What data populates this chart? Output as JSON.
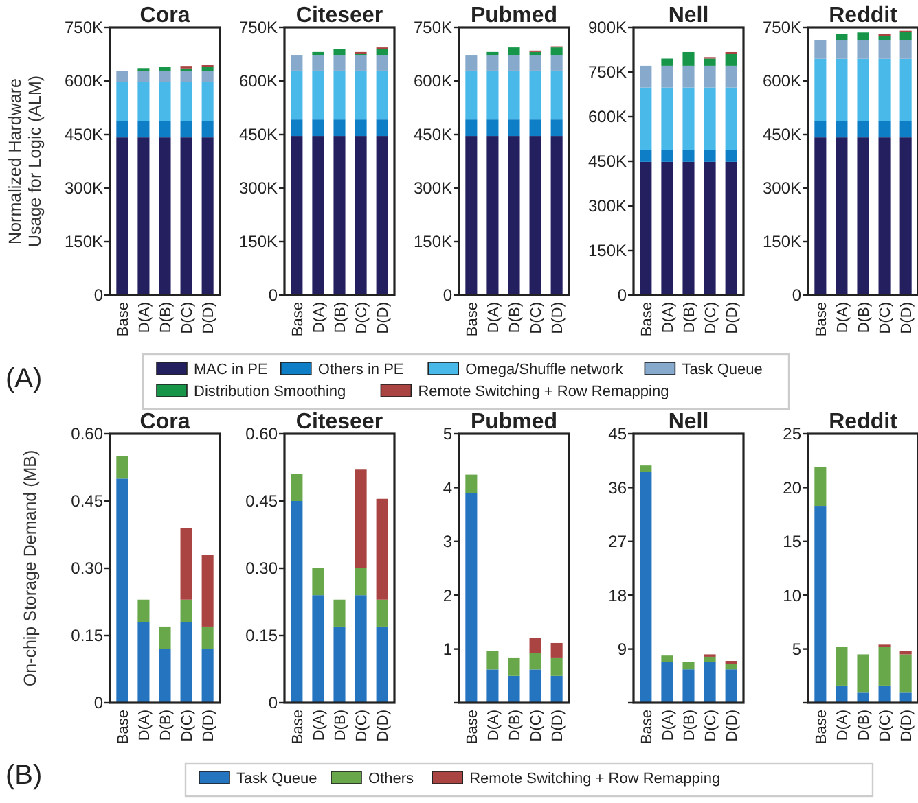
{
  "chart_data": [
    {
      "type": "bar",
      "stacked": true,
      "title": "Cora",
      "ylabel": "Normalized Hardware\nUsage for Logic (ALM)",
      "annotations": [
        "(A)"
      ],
      "legend": "bottom",
      "categories": [
        "Base",
        "D(A)",
        "D(B)",
        "D(C)",
        "D(D)"
      ],
      "ylim": [
        0,
        750
      ],
      "yticks": [
        0,
        {
          "value": 150,
          "label": "150K"
        },
        {
          "value": 300,
          "label": "300K"
        },
        {
          "value": 450,
          "label": "450K"
        },
        {
          "value": 600,
          "label": "600K"
        },
        {
          "value": 750,
          "label": "750K"
        }
      ],
      "series": [
        {
          "name": "MAC in PE",
          "color": "#241f5e",
          "values": [
            442,
            442,
            442,
            442,
            442
          ]
        },
        {
          "name": "Others in PE",
          "color": "#0e7fc7",
          "values": [
            46,
            46,
            46,
            46,
            46
          ]
        },
        {
          "name": "Omega/Shuffle network",
          "color": "#48b9e8",
          "values": [
            109,
            109,
            109,
            109,
            109
          ]
        },
        {
          "name": "Task Queue",
          "color": "#86a9cc",
          "values": [
            30,
            30,
            30,
            30,
            30
          ]
        },
        {
          "name": "Distribution Smoothing",
          "color": "#17964a",
          "values": [
            null,
            9,
            13,
            8,
            13
          ]
        },
        {
          "name": "Remote Switching + Row Remapping",
          "color": "#a94442",
          "values": [
            null,
            null,
            null,
            7,
            6
          ]
        }
      ]
    },
    {
      "type": "bar",
      "stacked": true,
      "title": "Citeseer",
      "categories": [
        "Base",
        "D(A)",
        "D(B)",
        "D(C)",
        "D(D)"
      ],
      "ylim": [
        0,
        750
      ],
      "yticks": [
        0,
        {
          "value": 150,
          "label": "150K"
        },
        {
          "value": 300,
          "label": "300K"
        },
        {
          "value": 450,
          "label": "450K"
        },
        {
          "value": 600,
          "label": "600K"
        },
        {
          "value": 750,
          "label": "750K"
        }
      ],
      "series": [
        {
          "color": "#241f5e",
          "values": [
            446,
            446,
            446,
            446,
            446
          ]
        },
        {
          "color": "#0e7fc7",
          "values": [
            46,
            46,
            46,
            46,
            46
          ]
        },
        {
          "color": "#48b9e8",
          "values": [
            137,
            137,
            137,
            137,
            137
          ]
        },
        {
          "color": "#86a9cc",
          "values": [
            44,
            44,
            44,
            44,
            44
          ]
        },
        {
          "color": "#17964a",
          "values": [
            null,
            8,
            17,
            3,
            17
          ]
        },
        {
          "color": "#a94442",
          "values": [
            null,
            null,
            null,
            5,
            4
          ]
        }
      ]
    },
    {
      "type": "bar",
      "stacked": true,
      "title": "Pubmed",
      "categories": [
        "Base",
        "D(A)",
        "D(B)",
        "D(C)",
        "D(D)"
      ],
      "ylim": [
        0,
        750
      ],
      "yticks": [
        0,
        {
          "value": 150,
          "label": "150K"
        },
        {
          "value": 300,
          "label": "300K"
        },
        {
          "value": 450,
          "label": "450K"
        },
        {
          "value": 600,
          "label": "600K"
        },
        {
          "value": 750,
          "label": "750K"
        }
      ],
      "series": [
        {
          "color": "#241f5e",
          "values": [
            446,
            446,
            446,
            446,
            446
          ]
        },
        {
          "color": "#0e7fc7",
          "values": [
            46,
            46,
            46,
            46,
            46
          ]
        },
        {
          "color": "#48b9e8",
          "values": [
            137,
            137,
            137,
            137,
            137
          ]
        },
        {
          "color": "#86a9cc",
          "values": [
            44,
            44,
            44,
            44,
            44
          ]
        },
        {
          "color": "#17964a",
          "values": [
            null,
            8,
            21,
            8,
            21
          ]
        },
        {
          "color": "#a94442",
          "values": [
            null,
            null,
            null,
            4,
            3
          ]
        }
      ]
    },
    {
      "type": "bar",
      "stacked": true,
      "title": "Nell",
      "categories": [
        "Base",
        "D(A)",
        "D(B)",
        "D(C)",
        "D(D)"
      ],
      "ylim": [
        0,
        900
      ],
      "yticks": [
        0,
        {
          "value": 150,
          "label": "150K"
        },
        {
          "value": 300,
          "label": "300K"
        },
        {
          "value": 450,
          "label": "450K"
        },
        {
          "value": 600,
          "label": "600K"
        },
        {
          "value": 750,
          "label": "750K"
        },
        {
          "value": 900,
          "label": "900K"
        }
      ],
      "series": [
        {
          "color": "#241f5e",
          "values": [
            448,
            448,
            448,
            448,
            448
          ]
        },
        {
          "color": "#0e7fc7",
          "values": [
            41,
            41,
            41,
            41,
            41
          ]
        },
        {
          "color": "#48b9e8",
          "values": [
            209,
            209,
            209,
            209,
            209
          ]
        },
        {
          "color": "#86a9cc",
          "values": [
            73,
            73,
            73,
            73,
            73
          ]
        },
        {
          "color": "#17964a",
          "values": [
            null,
            24,
            46,
            24,
            41
          ]
        },
        {
          "color": "#a94442",
          "values": [
            null,
            null,
            null,
            5,
            5
          ]
        }
      ]
    },
    {
      "type": "bar",
      "stacked": true,
      "title": "Reddit",
      "categories": [
        "Base",
        "D(A)",
        "D(B)",
        "D(C)",
        "D(D)"
      ],
      "ylim": [
        0,
        750
      ],
      "yticks": [
        0,
        {
          "value": 150,
          "label": "150K"
        },
        {
          "value": 300,
          "label": "300K"
        },
        {
          "value": 450,
          "label": "450K"
        },
        {
          "value": 600,
          "label": "600K"
        },
        {
          "value": 750,
          "label": "750K"
        }
      ],
      "series": [
        {
          "color": "#241f5e",
          "values": [
            442,
            442,
            442,
            442,
            442
          ]
        },
        {
          "color": "#0e7fc7",
          "values": [
            46,
            46,
            46,
            46,
            46
          ]
        },
        {
          "color": "#48b9e8",
          "values": [
            174,
            174,
            174,
            174,
            174
          ]
        },
        {
          "color": "#86a9cc",
          "values": [
            53,
            53,
            53,
            53,
            53
          ]
        },
        {
          "color": "#17964a",
          "values": [
            null,
            17,
            21,
            11,
            23
          ]
        },
        {
          "color": "#a94442",
          "values": [
            null,
            null,
            null,
            5,
            3
          ]
        }
      ]
    },
    {
      "type": "bar",
      "stacked": true,
      "title": "Cora",
      "ylabel": "On-chip Storage Demand (MB)",
      "annotations": [
        "(B)"
      ],
      "legend": "bottom",
      "categories": [
        "Base",
        "D(A)",
        "D(B)",
        "D(C)",
        "D(D)"
      ],
      "ylim": [
        0,
        0.6
      ],
      "yticks": [
        0,
        0.15,
        {
          "value": 0.3,
          "label": "0.30"
        },
        0.45,
        {
          "value": 0.6,
          "label": "0.60"
        }
      ],
      "series": [
        {
          "name": "Task Queue",
          "color": "#2574c0",
          "values": [
            0.5,
            0.18,
            0.12,
            0.18,
            0.12
          ]
        },
        {
          "name": "Others",
          "color": "#68a84a",
          "values": [
            0.05,
            0.05,
            0.05,
            0.05,
            0.05
          ]
        },
        {
          "name": "Remote Switching + Row Remapping",
          "color": "#a94442",
          "values": [
            null,
            null,
            null,
            0.16,
            0.16
          ]
        }
      ]
    },
    {
      "type": "bar",
      "stacked": true,
      "title": "Citeseer",
      "categories": [
        "Base",
        "D(A)",
        "D(B)",
        "D(C)",
        "D(D)"
      ],
      "ylim": [
        0,
        0.6
      ],
      "yticks": [
        0,
        0.15,
        {
          "value": 0.3,
          "label": "0.30"
        },
        0.45,
        {
          "value": 0.6,
          "label": "0.60"
        }
      ],
      "series": [
        {
          "color": "#2574c0",
          "values": [
            0.45,
            0.24,
            0.17,
            0.24,
            0.17
          ]
        },
        {
          "color": "#68a84a",
          "values": [
            0.06,
            0.06,
            0.06,
            0.06,
            0.06
          ]
        },
        {
          "color": "#a94442",
          "values": [
            null,
            null,
            null,
            0.22,
            0.225
          ]
        }
      ]
    },
    {
      "type": "bar",
      "stacked": true,
      "title": "Pubmed",
      "categories": [
        "Base",
        "D(A)",
        "D(B)",
        "D(C)",
        "D(D)"
      ],
      "ylim": [
        0,
        5
      ],
      "yticks": [
        {
          "value": 0,
          "label": null
        },
        1,
        2,
        3,
        4,
        5
      ],
      "series": [
        {
          "color": "#2574c0",
          "values": [
            3.9,
            0.62,
            0.5,
            0.62,
            0.5
          ]
        },
        {
          "color": "#68a84a",
          "values": [
            0.34,
            0.34,
            0.33,
            0.3,
            0.33
          ]
        },
        {
          "color": "#a94442",
          "values": [
            null,
            null,
            null,
            0.29,
            0.28
          ]
        }
      ]
    },
    {
      "type": "bar",
      "stacked": true,
      "title": "Nell",
      "categories": [
        "Base",
        "D(A)",
        "D(B)",
        "D(C)",
        "D(D)"
      ],
      "ylim": [
        0,
        45
      ],
      "yticks": [
        {
          "value": 0,
          "label": null
        },
        9,
        18,
        27,
        36,
        45
      ],
      "series": [
        {
          "color": "#2574c0",
          "values": [
            38.6,
            6.8,
            5.6,
            6.8,
            5.6
          ]
        },
        {
          "color": "#68a84a",
          "values": [
            1.1,
            1.1,
            1.2,
            0.9,
            0.9
          ]
        },
        {
          "color": "#a94442",
          "values": [
            null,
            null,
            null,
            0.4,
            0.5
          ]
        }
      ]
    },
    {
      "type": "bar",
      "stacked": true,
      "title": "Reddit",
      "categories": [
        "Base",
        "D(A)",
        "D(B)",
        "D(C)",
        "D(D)"
      ],
      "ylim": [
        0,
        25
      ],
      "yticks": [
        {
          "value": 0,
          "label": null
        },
        5,
        10,
        15,
        20,
        25
      ],
      "series": [
        {
          "color": "#2574c0",
          "values": [
            18.3,
            1.6,
            1.0,
            1.6,
            1.0
          ]
        },
        {
          "color": "#68a84a",
          "values": [
            3.6,
            3.6,
            3.5,
            3.6,
            3.5
          ]
        },
        {
          "color": "#a94442",
          "values": [
            null,
            null,
            null,
            0.2,
            0.3
          ]
        }
      ]
    }
  ]
}
